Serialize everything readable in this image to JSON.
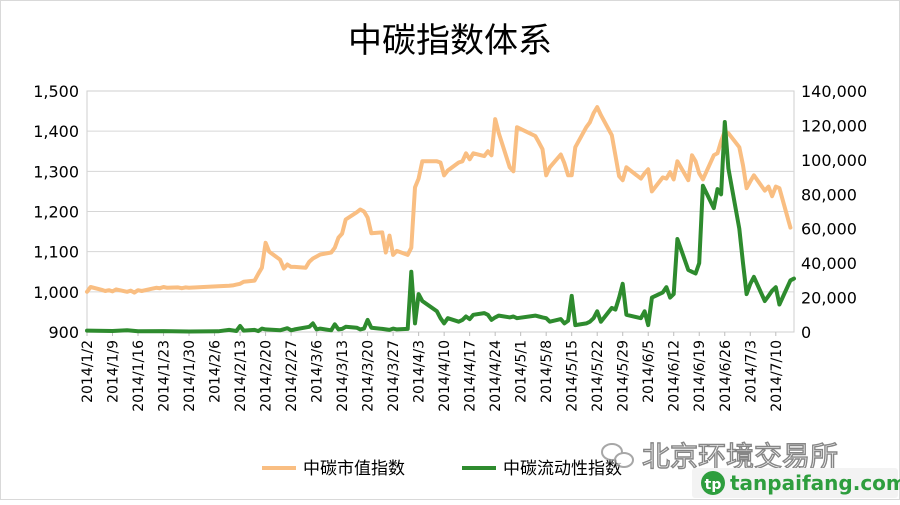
{
  "chart_data": {
    "type": "line",
    "title": "中碳指数体系",
    "x_dates": [
      "2014/1/2",
      "2014/1/9",
      "2014/1/16",
      "2014/1/23",
      "2014/1/30",
      "2014/2/6",
      "2014/2/13",
      "2014/2/20",
      "2014/2/27",
      "2014/3/6",
      "2014/3/13",
      "2014/3/20",
      "2014/3/27",
      "2014/4/3",
      "2014/4/10",
      "2014/4/17",
      "2014/4/24",
      "2014/5/1",
      "2014/5/8",
      "2014/5/15",
      "2014/5/22",
      "2014/5/29",
      "2014/6/5",
      "2014/6/12",
      "2014/6/19",
      "2014/6/26",
      "2014/7/3",
      "2014/7/10"
    ],
    "y_left": {
      "min": 900,
      "max": 1500,
      "ticks": [
        "900",
        "1,000",
        "1,100",
        "1,200",
        "1,300",
        "1,400",
        "1,500"
      ]
    },
    "y_right": {
      "min": 0,
      "max": 140000,
      "ticks": [
        "0",
        "20,000",
        "40,000",
        "60,000",
        "80,000",
        "100,000",
        "120,000",
        "140,000"
      ]
    },
    "series": [
      {
        "name": "中碳市值指数",
        "axis": "left",
        "color": "#F9BE82",
        "points": [
          [
            "2014/1/2",
            1000
          ],
          [
            "2014/1/3",
            1012
          ],
          [
            "2014/1/6",
            1005
          ],
          [
            "2014/1/7",
            1002
          ],
          [
            "2014/1/8",
            1004
          ],
          [
            "2014/1/9",
            1001
          ],
          [
            "2014/1/10",
            1006
          ],
          [
            "2014/1/13",
            1000
          ],
          [
            "2014/1/14",
            1003
          ],
          [
            "2014/1/15",
            998
          ],
          [
            "2014/1/16",
            1004
          ],
          [
            "2014/1/17",
            1002
          ],
          [
            "2014/1/20",
            1008
          ],
          [
            "2014/1/21",
            1010
          ],
          [
            "2014/1/22",
            1009
          ],
          [
            "2014/1/23",
            1012
          ],
          [
            "2014/1/24",
            1010
          ],
          [
            "2014/1/27",
            1011
          ],
          [
            "2014/1/28",
            1009
          ],
          [
            "2014/1/29",
            1011
          ],
          [
            "2014/1/30",
            1010
          ],
          [
            "2014/2/7",
            1014
          ],
          [
            "2014/2/10",
            1015
          ],
          [
            "2014/2/11",
            1016
          ],
          [
            "2014/2/12",
            1018
          ],
          [
            "2014/2/13",
            1020
          ],
          [
            "2014/2/14",
            1025
          ],
          [
            "2014/2/17",
            1028
          ],
          [
            "2014/2/18",
            1045
          ],
          [
            "2014/2/19",
            1060
          ],
          [
            "2014/2/20",
            1122
          ],
          [
            "2014/2/21",
            1100
          ],
          [
            "2014/2/24",
            1080
          ],
          [
            "2014/2/25",
            1058
          ],
          [
            "2014/2/26",
            1068
          ],
          [
            "2014/2/27",
            1062
          ],
          [
            "2014/2/28",
            1062
          ],
          [
            "2014/3/3",
            1060
          ],
          [
            "2014/3/4",
            1075
          ],
          [
            "2014/3/5",
            1083
          ],
          [
            "2014/3/6",
            1088
          ],
          [
            "2014/3/7",
            1093
          ],
          [
            "2014/3/10",
            1098
          ],
          [
            "2014/3/11",
            1110
          ],
          [
            "2014/3/12",
            1135
          ],
          [
            "2014/3/13",
            1145
          ],
          [
            "2014/3/14",
            1180
          ],
          [
            "2014/3/17",
            1198
          ],
          [
            "2014/3/18",
            1205
          ],
          [
            "2014/3/19",
            1200
          ],
          [
            "2014/3/20",
            1185
          ],
          [
            "2014/3/21",
            1146
          ],
          [
            "2014/3/24",
            1148
          ],
          [
            "2014/3/25",
            1098
          ],
          [
            "2014/3/26",
            1140
          ],
          [
            "2014/3/27",
            1092
          ],
          [
            "2014/3/28",
            1102
          ],
          [
            "2014/3/31",
            1092
          ],
          [
            "2014/4/1",
            1110
          ],
          [
            "2014/4/2",
            1260
          ],
          [
            "2014/4/3",
            1282
          ],
          [
            "2014/4/4",
            1325
          ],
          [
            "2014/4/8",
            1325
          ],
          [
            "2014/4/9",
            1322
          ],
          [
            "2014/4/10",
            1290
          ],
          [
            "2014/4/11",
            1302
          ],
          [
            "2014/4/14",
            1322
          ],
          [
            "2014/4/15",
            1325
          ],
          [
            "2014/4/16",
            1345
          ],
          [
            "2014/4/17",
            1330
          ],
          [
            "2014/4/18",
            1345
          ],
          [
            "2014/4/21",
            1338
          ],
          [
            "2014/4/22",
            1350
          ],
          [
            "2014/4/23",
            1340
          ],
          [
            "2014/4/24",
            1430
          ],
          [
            "2014/4/25",
            1395
          ],
          [
            "2014/4/28",
            1310
          ],
          [
            "2014/4/29",
            1300
          ],
          [
            "2014/4/30",
            1410
          ],
          [
            "2014/5/5",
            1388
          ],
          [
            "2014/5/6",
            1372
          ],
          [
            "2014/5/7",
            1355
          ],
          [
            "2014/5/8",
            1290
          ],
          [
            "2014/5/9",
            1310
          ],
          [
            "2014/5/12",
            1342
          ],
          [
            "2014/5/13",
            1320
          ],
          [
            "2014/5/14",
            1290
          ],
          [
            "2014/5/15",
            1290
          ],
          [
            "2014/5/16",
            1360
          ],
          [
            "2014/5/19",
            1410
          ],
          [
            "2014/5/20",
            1422
          ],
          [
            "2014/5/21",
            1445
          ],
          [
            "2014/5/22",
            1460
          ],
          [
            "2014/5/23",
            1440
          ],
          [
            "2014/5/26",
            1390
          ],
          [
            "2014/5/27",
            1340
          ],
          [
            "2014/5/28",
            1288
          ],
          [
            "2014/5/29",
            1278
          ],
          [
            "2014/5/30",
            1310
          ],
          [
            "2014/6/3",
            1282
          ],
          [
            "2014/6/4",
            1295
          ],
          [
            "2014/6/5",
            1305
          ],
          [
            "2014/6/6",
            1250
          ],
          [
            "2014/6/9",
            1285
          ],
          [
            "2014/6/10",
            1282
          ],
          [
            "2014/6/11",
            1298
          ],
          [
            "2014/6/12",
            1280
          ],
          [
            "2014/6/13",
            1325
          ],
          [
            "2014/6/16",
            1278
          ],
          [
            "2014/6/17",
            1340
          ],
          [
            "2014/6/18",
            1325
          ],
          [
            "2014/6/19",
            1295
          ],
          [
            "2014/6/20",
            1280
          ],
          [
            "2014/6/23",
            1340
          ],
          [
            "2014/6/24",
            1345
          ],
          [
            "2014/6/25",
            1375
          ],
          [
            "2014/6/26",
            1400
          ],
          [
            "2014/6/27",
            1395
          ],
          [
            "2014/6/30",
            1360
          ],
          [
            "2014/7/1",
            1315
          ],
          [
            "2014/7/2",
            1258
          ],
          [
            "2014/7/3",
            1275
          ],
          [
            "2014/7/4",
            1290
          ],
          [
            "2014/7/7",
            1252
          ],
          [
            "2014/7/8",
            1262
          ],
          [
            "2014/7/9",
            1238
          ],
          [
            "2014/7/10",
            1262
          ],
          [
            "2014/7/11",
            1258
          ],
          [
            "2014/7/14",
            1160
          ]
        ]
      },
      {
        "name": "中碳流动性指数",
        "axis": "right",
        "color": "#2E8B2E",
        "points": [
          [
            "2014/1/2",
            800
          ],
          [
            "2014/1/9",
            600
          ],
          [
            "2014/1/13",
            1000
          ],
          [
            "2014/1/16",
            400
          ],
          [
            "2014/1/23",
            500
          ],
          [
            "2014/1/30",
            300
          ],
          [
            "2014/2/7",
            400
          ],
          [
            "2014/2/10",
            1200
          ],
          [
            "2014/2/12",
            600
          ],
          [
            "2014/2/13",
            3500
          ],
          [
            "2014/2/14",
            800
          ],
          [
            "2014/2/17",
            1200
          ],
          [
            "2014/2/18",
            500
          ],
          [
            "2014/2/19",
            2000
          ],
          [
            "2014/2/20",
            1500
          ],
          [
            "2014/2/24",
            1000
          ],
          [
            "2014/2/26",
            2200
          ],
          [
            "2014/2/27",
            1000
          ],
          [
            "2014/2/28",
            1500
          ],
          [
            "2014/3/4",
            3000
          ],
          [
            "2014/3/5",
            5000
          ],
          [
            "2014/3/6",
            1500
          ],
          [
            "2014/3/7",
            2000
          ],
          [
            "2014/3/10",
            1000
          ],
          [
            "2014/3/11",
            4500
          ],
          [
            "2014/3/12",
            1500
          ],
          [
            "2014/3/13",
            1800
          ],
          [
            "2014/3/14",
            3000
          ],
          [
            "2014/3/17",
            2500
          ],
          [
            "2014/3/18",
            1500
          ],
          [
            "2014/3/19",
            2000
          ],
          [
            "2014/3/20",
            7000
          ],
          [
            "2014/3/21",
            2500
          ],
          [
            "2014/3/24",
            1800
          ],
          [
            "2014/3/25",
            1500
          ],
          [
            "2014/3/26",
            1200
          ],
          [
            "2014/3/27",
            2000
          ],
          [
            "2014/3/28",
            1500
          ],
          [
            "2014/3/31",
            1800
          ],
          [
            "2014/4/1",
            35000
          ],
          [
            "2014/4/2",
            5000
          ],
          [
            "2014/4/3",
            22000
          ],
          [
            "2014/4/4",
            18000
          ],
          [
            "2014/4/8",
            12000
          ],
          [
            "2014/4/9",
            8000
          ],
          [
            "2014/4/10",
            5000
          ],
          [
            "2014/4/11",
            8000
          ],
          [
            "2014/4/14",
            6000
          ],
          [
            "2014/4/15",
            7000
          ],
          [
            "2014/4/16",
            9000
          ],
          [
            "2014/4/17",
            7500
          ],
          [
            "2014/4/18",
            10000
          ],
          [
            "2014/4/21",
            11000
          ],
          [
            "2014/4/22",
            10000
          ],
          [
            "2014/4/23",
            7000
          ],
          [
            "2014/4/24",
            8500
          ],
          [
            "2014/4/25",
            9500
          ],
          [
            "2014/4/28",
            8500
          ],
          [
            "2014/4/29",
            9000
          ],
          [
            "2014/4/30",
            8000
          ],
          [
            "2014/5/5",
            9500
          ],
          [
            "2014/5/6",
            9000
          ],
          [
            "2014/5/7",
            8500
          ],
          [
            "2014/5/8",
            8000
          ],
          [
            "2014/5/9",
            6000
          ],
          [
            "2014/5/12",
            7500
          ],
          [
            "2014/5/13",
            5000
          ],
          [
            "2014/5/14",
            6500
          ],
          [
            "2014/5/15",
            21000
          ],
          [
            "2014/5/16",
            4000
          ],
          [
            "2014/5/19",
            5000
          ],
          [
            "2014/5/20",
            6000
          ],
          [
            "2014/5/21",
            8000
          ],
          [
            "2014/5/22",
            12000
          ],
          [
            "2014/5/23",
            6000
          ],
          [
            "2014/5/26",
            14000
          ],
          [
            "2014/5/27",
            13000
          ],
          [
            "2014/5/28",
            20000
          ],
          [
            "2014/5/29",
            28000
          ],
          [
            "2014/5/30",
            10000
          ],
          [
            "2014/6/3",
            8000
          ],
          [
            "2014/6/4",
            12000
          ],
          [
            "2014/6/5",
            4000
          ],
          [
            "2014/6/6",
            20000
          ],
          [
            "2014/6/9",
            23000
          ],
          [
            "2014/6/10",
            26000
          ],
          [
            "2014/6/11",
            20000
          ],
          [
            "2014/6/12",
            22000
          ],
          [
            "2014/6/13",
            54000
          ],
          [
            "2014/6/16",
            36000
          ],
          [
            "2014/6/17",
            35000
          ],
          [
            "2014/6/18",
            34000
          ],
          [
            "2014/6/19",
            40000
          ],
          [
            "2014/6/20",
            85000
          ],
          [
            "2014/6/23",
            72000
          ],
          [
            "2014/6/24",
            83000
          ],
          [
            "2014/6/25",
            80000
          ],
          [
            "2014/6/26",
            122000
          ],
          [
            "2014/6/27",
            95000
          ],
          [
            "2014/6/30",
            60000
          ],
          [
            "2014/7/1",
            40000
          ],
          [
            "2014/7/2",
            22000
          ],
          [
            "2014/7/3",
            28000
          ],
          [
            "2014/7/4",
            32000
          ],
          [
            "2014/7/7",
            18000
          ],
          [
            "2014/7/8",
            21000
          ],
          [
            "2014/7/9",
            24000
          ],
          [
            "2014/7/10",
            26000
          ],
          [
            "2014/7/11",
            16000
          ],
          [
            "2014/7/14",
            30000
          ],
          [
            "2014/7/15",
            31000
          ]
        ]
      }
    ],
    "legend": {
      "placement": "bottom"
    }
  },
  "watermark": {
    "text": "北京环境交易所",
    "url": "tanpaifang.com"
  }
}
